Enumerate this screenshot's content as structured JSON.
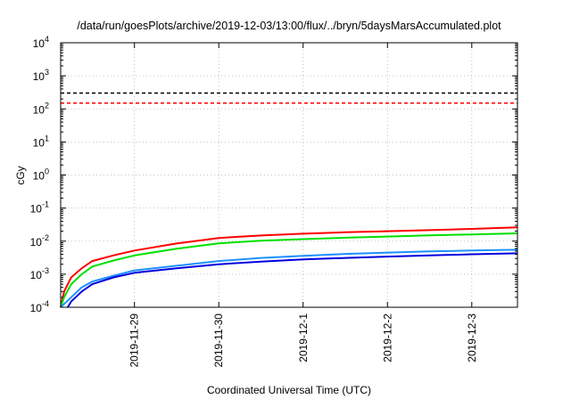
{
  "chart_data": {
    "type": "line",
    "title": "/data/run/goesPlots/archive/2019-12-03/13:00/flux/../bryn/5daysMarsAccumulated.plot",
    "xlabel": "Coordinated Universal Time (UTC)",
    "ylabel": "cGy",
    "x_scale": "time",
    "y_scale": "log",
    "xlim": [
      "2019-11-28T03:00",
      "2019-12-03T13:00"
    ],
    "ylim": [
      0.0001,
      10000
    ],
    "x_ticks": [
      {
        "value": "2019-11-29T00:00",
        "label": "2019-11-29"
      },
      {
        "value": "2019-11-30T00:00",
        "label": "2019-11-30"
      },
      {
        "value": "2019-12-01T00:00",
        "label": "2019-12-1"
      },
      {
        "value": "2019-12-02T00:00",
        "label": "2019-12-2"
      },
      {
        "value": "2019-12-03T00:00",
        "label": "2019-12-3"
      }
    ],
    "y_ticks": [
      {
        "value": 0.0001,
        "base": "10",
        "exp": "-4"
      },
      {
        "value": 0.001,
        "base": "10",
        "exp": "-3"
      },
      {
        "value": 0.01,
        "base": "10",
        "exp": "-2"
      },
      {
        "value": 0.1,
        "base": "10",
        "exp": "-1"
      },
      {
        "value": 1,
        "base": "10",
        "exp": "0"
      },
      {
        "value": 10,
        "base": "10",
        "exp": "1"
      },
      {
        "value": 100,
        "base": "10",
        "exp": "2"
      },
      {
        "value": 1000,
        "base": "10",
        "exp": "3"
      },
      {
        "value": 10000,
        "base": "10",
        "exp": "4"
      }
    ],
    "grid": true,
    "reference_lines": [
      {
        "y": 300,
        "color": "#000000",
        "style": "dashed"
      },
      {
        "y": 150,
        "color": "#ff0000",
        "style": "dashed"
      }
    ],
    "series": [
      {
        "color": "#ff0000",
        "x": [
          "2019-11-28T03:00",
          "2019-11-28T04:00",
          "2019-11-28T06:00",
          "2019-11-28T09:00",
          "2019-11-28T12:00",
          "2019-11-28T18:00",
          "2019-11-29T00:00",
          "2019-11-29T12:00",
          "2019-11-30T00:00",
          "2019-11-30T12:00",
          "2019-12-01T00:00",
          "2019-12-01T12:00",
          "2019-12-02T00:00",
          "2019-12-02T12:00",
          "2019-12-03T00:00",
          "2019-12-03T13:00"
        ],
        "y": [
          0.0001,
          0.0003,
          0.0008,
          0.0015,
          0.0025,
          0.0037,
          0.0052,
          0.0085,
          0.0125,
          0.0148,
          0.0168,
          0.0185,
          0.02,
          0.0215,
          0.0235,
          0.026
        ]
      },
      {
        "color": "#00e000",
        "x": [
          "2019-11-28T03:00",
          "2019-11-28T04:00",
          "2019-11-28T06:00",
          "2019-11-28T09:00",
          "2019-11-28T12:00",
          "2019-11-28T18:00",
          "2019-11-29T00:00",
          "2019-11-29T12:00",
          "2019-11-30T00:00",
          "2019-11-30T12:00",
          "2019-12-01T00:00",
          "2019-12-01T12:00",
          "2019-12-02T00:00",
          "2019-12-02T12:00",
          "2019-12-03T00:00",
          "2019-12-03T13:00"
        ],
        "y": [
          0.0001,
          0.0002,
          0.0005,
          0.001,
          0.0017,
          0.0026,
          0.0037,
          0.0059,
          0.0086,
          0.0103,
          0.0115,
          0.0127,
          0.0138,
          0.015,
          0.016,
          0.0172
        ]
      },
      {
        "color": "#1e90ff",
        "x": [
          "2019-11-28T03:00",
          "2019-11-28T06:00",
          "2019-11-28T09:00",
          "2019-11-28T12:00",
          "2019-11-28T18:00",
          "2019-11-29T00:00",
          "2019-11-29T12:00",
          "2019-11-30T00:00",
          "2019-11-30T12:00",
          "2019-12-01T00:00",
          "2019-12-01T12:00",
          "2019-12-02T00:00",
          "2019-12-02T12:00",
          "2019-12-03T00:00",
          "2019-12-03T13:00"
        ],
        "y": [
          0.0001,
          0.0002,
          0.0004,
          0.0006,
          0.0009,
          0.0013,
          0.0018,
          0.0025,
          0.0031,
          0.0036,
          0.0041,
          0.0045,
          0.0049,
          0.0052,
          0.0055
        ]
      },
      {
        "color": "#0000dd",
        "x": [
          "2019-11-28T05:00",
          "2019-11-28T06:00",
          "2019-11-28T09:00",
          "2019-11-28T12:00",
          "2019-11-28T18:00",
          "2019-11-29T00:00",
          "2019-11-29T12:00",
          "2019-11-30T00:00",
          "2019-11-30T12:00",
          "2019-12-01T00:00",
          "2019-12-01T12:00",
          "2019-12-02T00:00",
          "2019-12-02T12:00",
          "2019-12-03T00:00",
          "2019-12-03T13:00"
        ],
        "y": [
          0.0001,
          0.00015,
          0.0003,
          0.0005,
          0.0008,
          0.0011,
          0.0015,
          0.002,
          0.0024,
          0.0028,
          0.0031,
          0.0034,
          0.0037,
          0.004,
          0.0043
        ]
      }
    ]
  }
}
